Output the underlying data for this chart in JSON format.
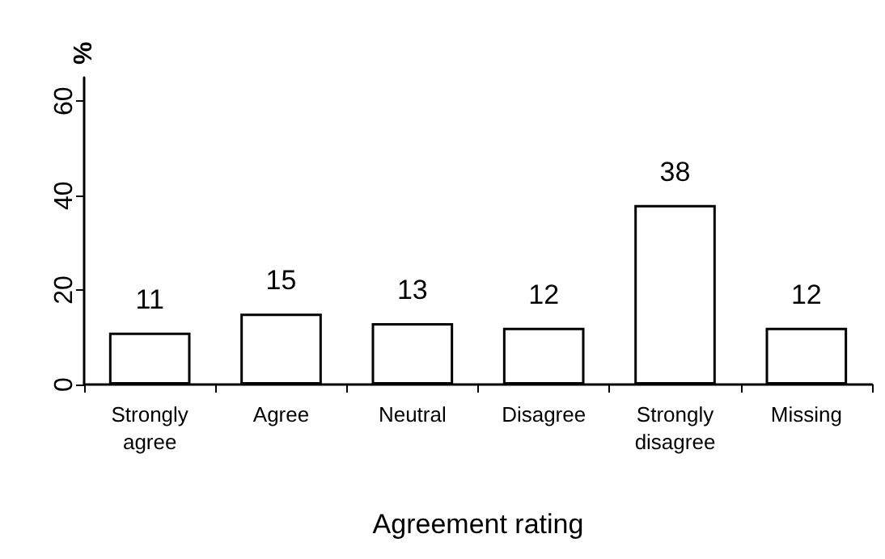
{
  "chart_data": {
    "type": "bar",
    "xlabel": "Agreement rating",
    "ylabel": "%",
    "categories": [
      "Strongly\nagree",
      "Agree",
      "Neutral",
      "Disagree",
      "Strongly\ndisagree",
      "Missing"
    ],
    "values": [
      11,
      15,
      13,
      12,
      38,
      12
    ],
    "color": "#ffffff",
    "ylim": [
      0,
      65
    ],
    "yticks": [
      0,
      20,
      40,
      60
    ],
    "grid": false,
    "data_labels": true
  }
}
